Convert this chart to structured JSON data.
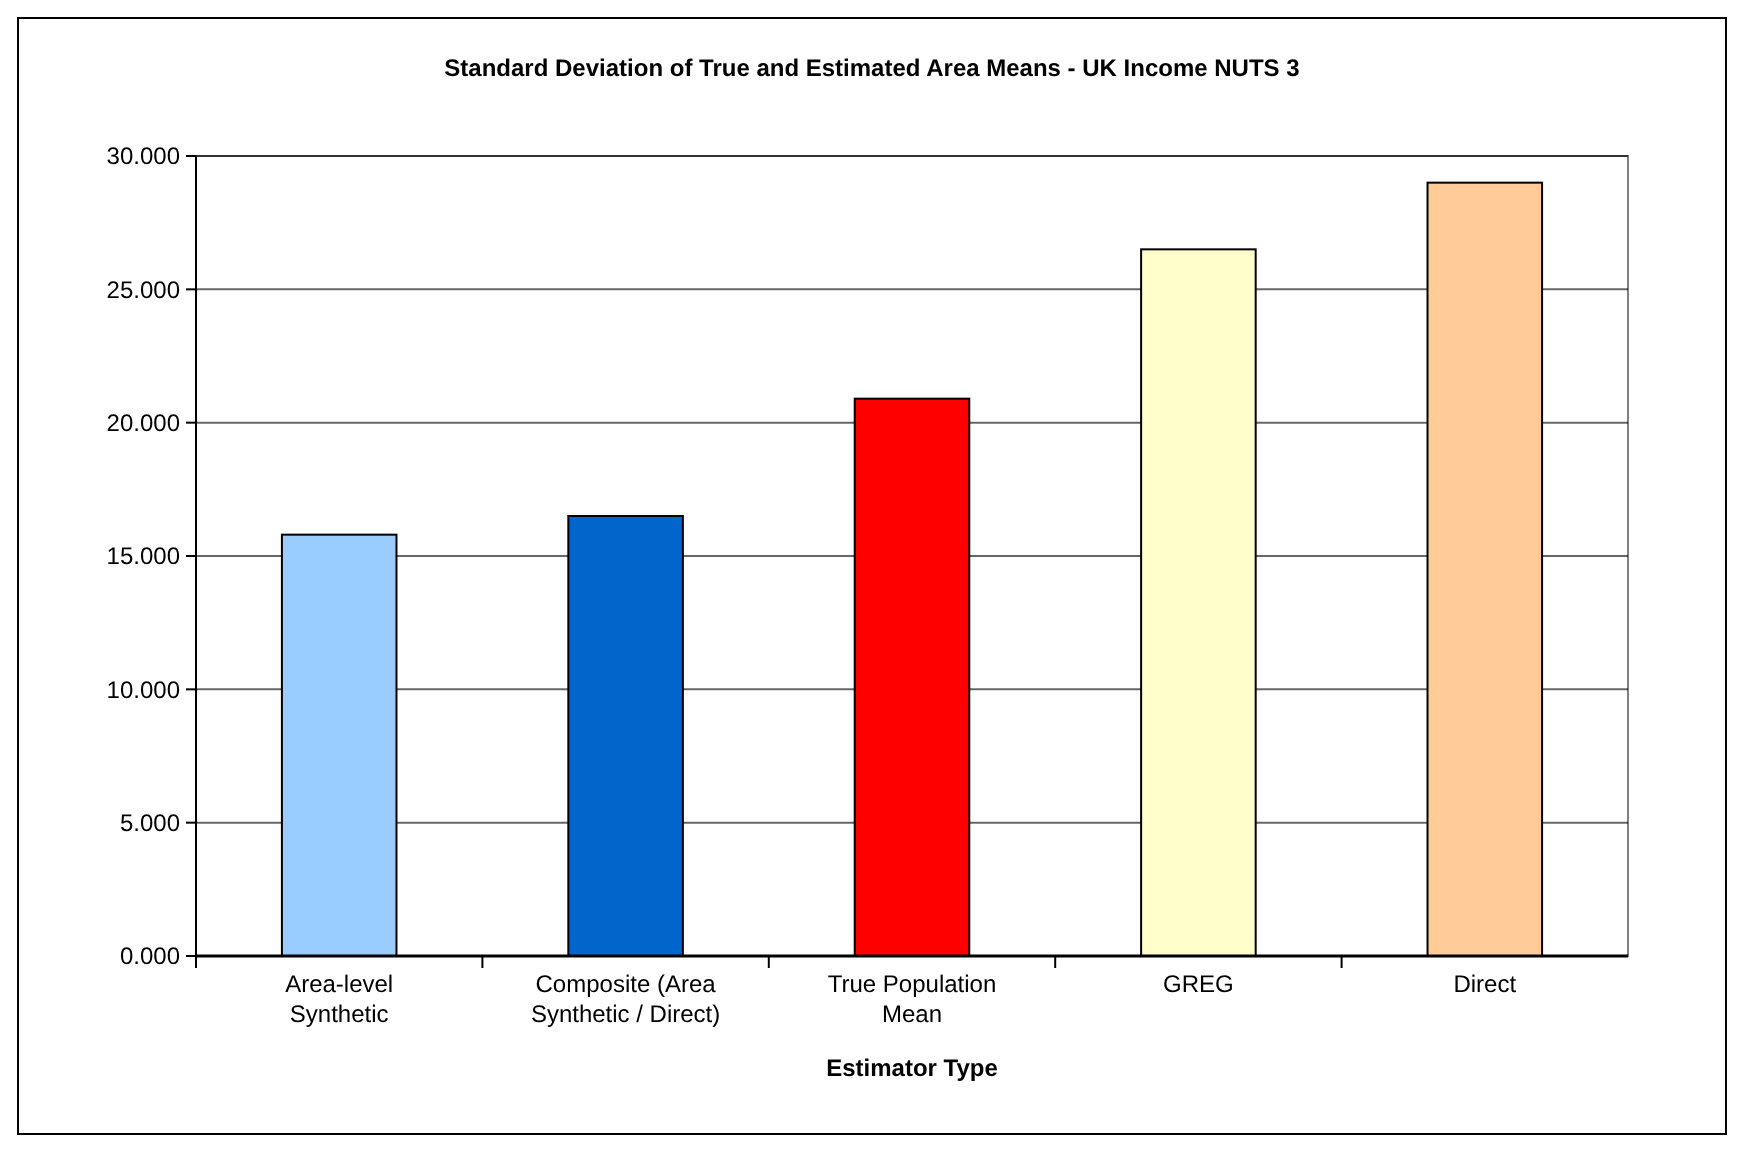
{
  "chart_data": {
    "type": "bar",
    "title": "Standard Deviation of True and Estimated Area Means - UK Income NUTS 3",
    "xlabel": "Estimator Type",
    "categories": [
      "Area-level Synthetic",
      "Composite (Area Synthetic / Direct)",
      "True Population Mean",
      "GREG",
      "Direct"
    ],
    "values": [
      15.8,
      16.5,
      20.9,
      26.5,
      29.0
    ],
    "colors": [
      "#99ccff",
      "#0066cc",
      "#ff0000",
      "#ffffcc",
      "#ffcc99"
    ],
    "ylim": [
      0,
      30
    ],
    "yticks": [
      {
        "value": 0,
        "label": "0.000"
      },
      {
        "value": 5,
        "label": "5.000"
      },
      {
        "value": 10,
        "label": "10.000"
      },
      {
        "value": 15,
        "label": "15.000"
      },
      {
        "value": 20,
        "label": "20.000"
      },
      {
        "value": 25,
        "label": "25.000"
      },
      {
        "value": 30,
        "label": "30.000"
      }
    ],
    "grid": true
  }
}
